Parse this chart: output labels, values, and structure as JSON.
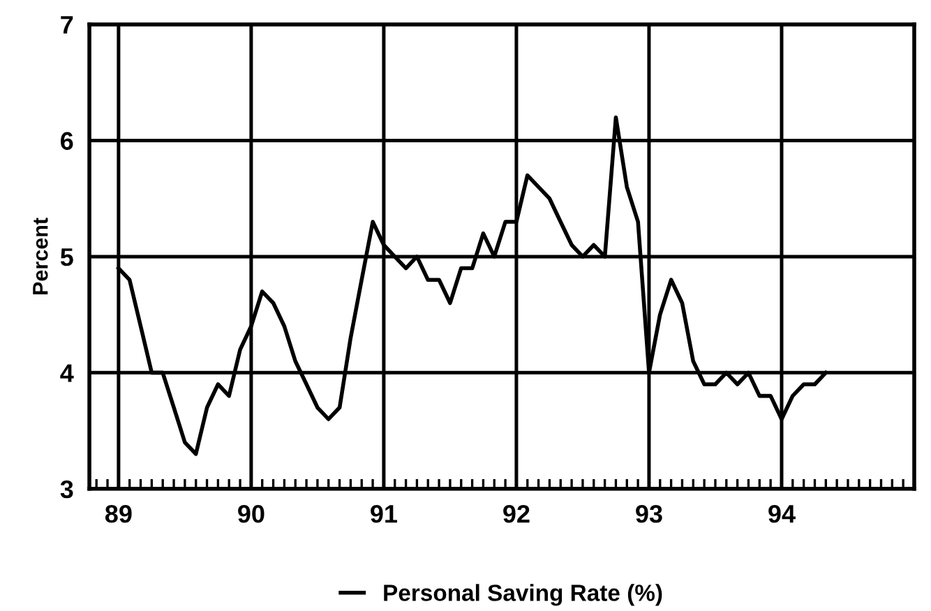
{
  "chart_data": {
    "type": "line",
    "ylabel": "Percent",
    "x": [
      89.0,
      89.083,
      89.167,
      89.25,
      89.333,
      89.417,
      89.5,
      89.583,
      89.667,
      89.75,
      89.833,
      89.917,
      90.0,
      90.083,
      90.167,
      90.25,
      90.333,
      90.417,
      90.5,
      90.583,
      90.667,
      90.75,
      90.833,
      90.917,
      91.0,
      91.083,
      91.167,
      91.25,
      91.333,
      91.417,
      91.5,
      91.583,
      91.667,
      91.75,
      91.833,
      91.917,
      92.0,
      92.083,
      92.167,
      92.25,
      92.333,
      92.417,
      92.5,
      92.583,
      92.667,
      92.75,
      92.833,
      92.917,
      93.0,
      93.083,
      93.167,
      93.25,
      93.333,
      93.417,
      93.5,
      93.583,
      93.667,
      93.75,
      93.833,
      93.917,
      94.0,
      94.083,
      94.167,
      94.25,
      94.333
    ],
    "series": [
      {
        "name": "Personal Saving Rate (%)",
        "color": "#000000",
        "values": [
          4.9,
          4.8,
          4.4,
          4.0,
          4.0,
          3.7,
          3.4,
          3.3,
          3.7,
          3.9,
          3.8,
          4.2,
          4.4,
          4.7,
          4.6,
          4.4,
          4.1,
          3.9,
          3.7,
          3.6,
          3.7,
          4.3,
          4.8,
          5.3,
          5.1,
          5.0,
          4.9,
          5.0,
          4.8,
          4.8,
          4.6,
          4.9,
          4.9,
          5.2,
          5.0,
          5.3,
          5.3,
          5.7,
          5.6,
          5.5,
          5.3,
          5.1,
          5.0,
          5.1,
          5.0,
          6.2,
          5.6,
          5.3,
          4.0,
          4.5,
          4.8,
          4.6,
          4.1,
          3.9,
          3.9,
          4.0,
          3.9,
          4.0,
          3.8,
          3.8,
          3.6,
          3.8,
          3.9,
          3.9,
          4.0
        ]
      }
    ],
    "xlim": [
      88.78,
      95.0
    ],
    "xticks": [
      89,
      90,
      91,
      92,
      93,
      94
    ],
    "ylim": [
      3,
      7
    ],
    "yticks": [
      3,
      4,
      5,
      6,
      7
    ],
    "grid": true,
    "legend": "bottom",
    "marker": "none",
    "line_style": "solid"
  }
}
